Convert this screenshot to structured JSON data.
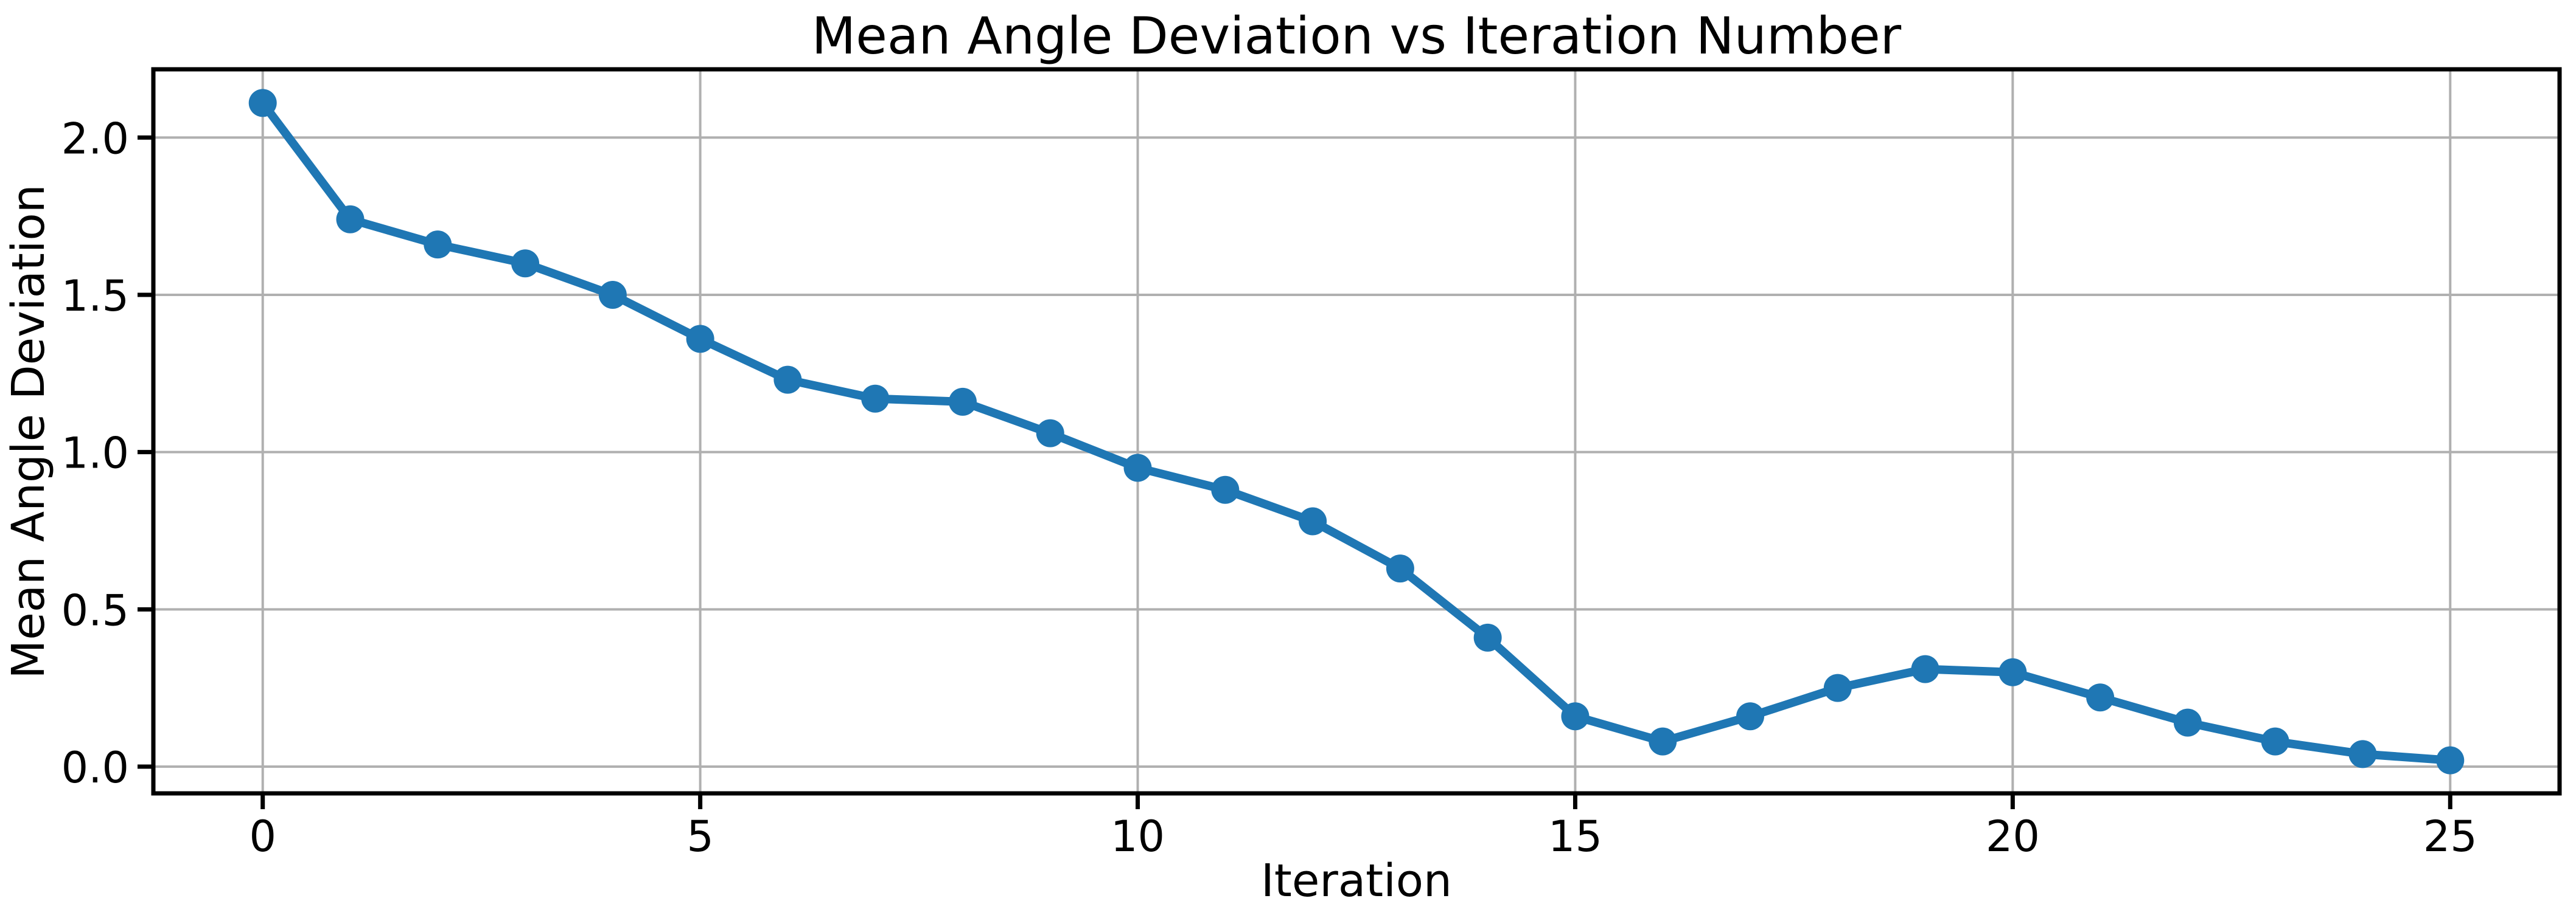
{
  "figure": {
    "background": "#ffffff",
    "text_color": "#000000"
  },
  "chart_data": {
    "type": "line",
    "title": "Mean Angle Deviation vs Iteration Number",
    "xlabel": "Iteration",
    "ylabel": "Mean Angle Deviation",
    "x": [
      0,
      1,
      2,
      3,
      4,
      5,
      6,
      7,
      8,
      9,
      10,
      11,
      12,
      13,
      14,
      15,
      16,
      17,
      18,
      19,
      20,
      21,
      22,
      23,
      24,
      25
    ],
    "y": [
      2.11,
      1.74,
      1.66,
      1.6,
      1.5,
      1.36,
      1.23,
      1.17,
      1.16,
      1.06,
      0.95,
      0.88,
      0.78,
      0.63,
      0.41,
      0.16,
      0.08,
      0.16,
      0.25,
      0.31,
      0.3,
      0.22,
      0.14,
      0.08,
      0.04,
      0.02
    ],
    "xlim": [
      -1.25,
      26.25
    ],
    "ylim": [
      -0.085,
      2.217
    ],
    "xticks": [
      0,
      5,
      10,
      15,
      20,
      25
    ],
    "xtick_labels": [
      "0",
      "5",
      "10",
      "15",
      "20",
      "25"
    ],
    "yticks": [
      0.0,
      0.5,
      1.0,
      1.5,
      2.0
    ],
    "ytick_labels": [
      "0.0",
      "0.5",
      "1.0",
      "1.5",
      "2.0"
    ],
    "grid": true,
    "legend": "none",
    "line_color": "#1f77b4",
    "marker": "o",
    "grid_color": "#b0b0b0",
    "frame_color": "#000000"
  }
}
